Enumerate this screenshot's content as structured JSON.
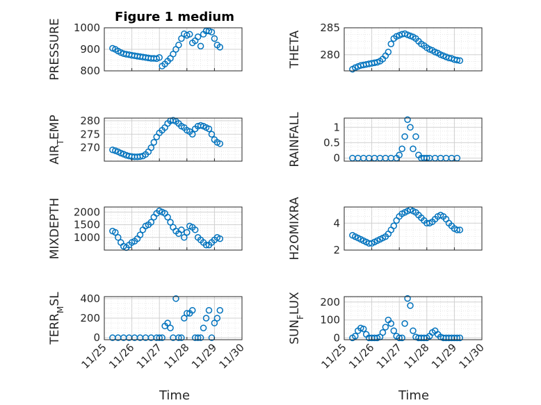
{
  "figure_title": "Figure 1 medium",
  "marker_color": "#0072BD",
  "x_tick_labels": [
    "11/25",
    "11/26",
    "11/27",
    "11/28",
    "11/29",
    "11/30"
  ],
  "x_axis_label": "Time",
  "chart_data": [
    {
      "type": "scatter",
      "title": "Figure 1 medium",
      "ylabel": "PRESSURE",
      "ylim": [
        800,
        1000
      ],
      "yticks": [
        "1000",
        "900",
        "800"
      ],
      "xlim": [
        0,
        5
      ],
      "x": [
        0.3,
        0.4,
        0.5,
        0.6,
        0.7,
        0.8,
        0.9,
        1.0,
        1.1,
        1.2,
        1.3,
        1.4,
        1.5,
        1.6,
        1.7,
        1.8,
        1.9,
        2.0,
        2.1,
        2.2,
        2.3,
        2.4,
        2.5,
        2.6,
        2.7,
        2.8,
        2.9,
        3.0,
        3.1,
        3.2,
        3.3,
        3.4,
        3.5,
        3.6,
        3.7,
        3.8,
        3.9,
        4.0,
        4.1,
        4.2
      ],
      "y": [
        905,
        900,
        892,
        885,
        880,
        877,
        875,
        872,
        870,
        868,
        866,
        864,
        862,
        860,
        858,
        858,
        857,
        862,
        822,
        832,
        845,
        858,
        878,
        900,
        920,
        950,
        972,
        965,
        970,
        930,
        940,
        958,
        915,
        970,
        985,
        985,
        980,
        950,
        920,
        910
      ]
    },
    {
      "type": "scatter",
      "ylabel": "THETA",
      "ylim": [
        277,
        285
      ],
      "yticks": [
        "285",
        "280"
      ],
      "xlim": [
        0,
        5
      ],
      "x": [
        0.3,
        0.4,
        0.5,
        0.6,
        0.7,
        0.8,
        0.9,
        1.0,
        1.1,
        1.2,
        1.3,
        1.4,
        1.5,
        1.6,
        1.7,
        1.8,
        1.9,
        2.0,
        2.1,
        2.2,
        2.3,
        2.4,
        2.5,
        2.6,
        2.7,
        2.8,
        2.9,
        3.0,
        3.1,
        3.2,
        3.3,
        3.4,
        3.5,
        3.6,
        3.7,
        3.8,
        3.9,
        4.0,
        4.1,
        4.2
      ],
      "y": [
        277.3,
        277.6,
        277.8,
        278.0,
        278.1,
        278.2,
        278.3,
        278.4,
        278.5,
        278.6,
        278.8,
        279.2,
        279.8,
        280.5,
        282.0,
        283.0,
        283.4,
        283.6,
        283.8,
        283.9,
        283.7,
        283.5,
        283.3,
        283.0,
        282.5,
        282.0,
        281.7,
        281.3,
        281.0,
        280.8,
        280.5,
        280.3,
        280.0,
        279.8,
        279.6,
        279.4,
        279.3,
        279.1,
        279.0,
        278.9
      ]
    },
    {
      "type": "scatter",
      "ylabel": "AIR_TEMP",
      "ylim": [
        265,
        281
      ],
      "yticks": [
        "280",
        "275",
        "270"
      ],
      "xlim": [
        0,
        5
      ],
      "x": [
        0.3,
        0.4,
        0.5,
        0.6,
        0.7,
        0.8,
        0.9,
        1.0,
        1.1,
        1.2,
        1.3,
        1.4,
        1.5,
        1.6,
        1.7,
        1.8,
        1.9,
        2.0,
        2.1,
        2.2,
        2.3,
        2.4,
        2.5,
        2.6,
        2.7,
        2.8,
        2.9,
        3.0,
        3.1,
        3.2,
        3.3,
        3.4,
        3.5,
        3.6,
        3.7,
        3.8,
        3.9,
        4.0,
        4.1,
        4.2
      ],
      "y": [
        269.2,
        268.9,
        268.5,
        268.0,
        267.6,
        267.2,
        266.9,
        266.7,
        266.6,
        266.6,
        266.7,
        266.9,
        267.5,
        268.5,
        270.0,
        272.0,
        274.0,
        275.5,
        276.5,
        277.5,
        279.0,
        280.0,
        280.2,
        279.8,
        279.0,
        278.0,
        277.5,
        276.5,
        276.0,
        275.0,
        277.0,
        278.0,
        278.3,
        278.0,
        277.5,
        277.0,
        275.0,
        273.0,
        272.0,
        271.5
      ]
    },
    {
      "type": "scatter",
      "ylabel": "RAINFALL",
      "ylim": [
        -0.1,
        1.3
      ],
      "yticks": [
        "1",
        "0.5",
        "0"
      ],
      "xlim": [
        0,
        5
      ],
      "x": [
        0.3,
        0.5,
        0.7,
        0.9,
        1.1,
        1.3,
        1.5,
        1.7,
        1.9,
        2.0,
        2.1,
        2.2,
        2.3,
        2.4,
        2.5,
        2.6,
        2.7,
        2.8,
        2.9,
        3.0,
        3.1,
        3.3,
        3.5,
        3.7,
        3.9,
        4.1
      ],
      "y": [
        0,
        0,
        0,
        0,
        0,
        0,
        0,
        0,
        0,
        0.1,
        0.3,
        0.7,
        1.25,
        1.0,
        0.3,
        0.7,
        0.1,
        0,
        0,
        0,
        0,
        0,
        0,
        0,
        0,
        0
      ]
    },
    {
      "type": "scatter",
      "ylabel": "MIXDEPTH",
      "ylim": [
        500,
        2200
      ],
      "yticks": [
        "2000",
        "1500",
        "1000"
      ],
      "xlim": [
        0,
        5
      ],
      "x": [
        0.3,
        0.4,
        0.5,
        0.6,
        0.7,
        0.8,
        0.9,
        1.0,
        1.1,
        1.2,
        1.3,
        1.4,
        1.5,
        1.6,
        1.7,
        1.8,
        1.9,
        2.0,
        2.1,
        2.2,
        2.3,
        2.4,
        2.5,
        2.6,
        2.7,
        2.8,
        2.9,
        3.0,
        3.1,
        3.2,
        3.3,
        3.4,
        3.5,
        3.6,
        3.7,
        3.8,
        3.9,
        4.0,
        4.1,
        4.2
      ],
      "y": [
        1250,
        1200,
        1000,
        800,
        650,
        600,
        700,
        800,
        850,
        950,
        1100,
        1300,
        1450,
        1500,
        1600,
        1800,
        1950,
        2050,
        2000,
        1950,
        1800,
        1600,
        1400,
        1250,
        1150,
        1300,
        1000,
        1200,
        1450,
        1400,
        1300,
        1000,
        900,
        800,
        700,
        700,
        800,
        900,
        1000,
        950
      ]
    },
    {
      "type": "scatter",
      "ylabel": "H2OMIXRA",
      "ylim": [
        2,
        5.2
      ],
      "yticks": [
        "4",
        "2"
      ],
      "xlim": [
        0,
        5
      ],
      "x": [
        0.3,
        0.4,
        0.5,
        0.6,
        0.7,
        0.8,
        0.9,
        1.0,
        1.1,
        1.2,
        1.3,
        1.4,
        1.5,
        1.6,
        1.7,
        1.8,
        1.9,
        2.0,
        2.1,
        2.2,
        2.3,
        2.4,
        2.5,
        2.6,
        2.7,
        2.8,
        2.9,
        3.0,
        3.1,
        3.2,
        3.3,
        3.4,
        3.5,
        3.6,
        3.7,
        3.8,
        3.9,
        4.0,
        4.1,
        4.2
      ],
      "y": [
        3.1,
        3.0,
        2.9,
        2.8,
        2.7,
        2.6,
        2.5,
        2.5,
        2.6,
        2.7,
        2.8,
        2.9,
        3.0,
        3.2,
        3.5,
        3.8,
        4.2,
        4.5,
        4.7,
        4.8,
        4.9,
        5.0,
        4.9,
        4.8,
        4.6,
        4.4,
        4.2,
        4.0,
        4.0,
        4.1,
        4.3,
        4.5,
        4.6,
        4.5,
        4.3,
        4.0,
        3.8,
        3.6,
        3.5,
        3.5
      ]
    },
    {
      "type": "scatter",
      "ylabel": "TERR_MSL",
      "ylim": [
        -20,
        420
      ],
      "yticks": [
        "400",
        "200",
        "0"
      ],
      "xlim": [
        0,
        5
      ],
      "x": [
        0.3,
        0.5,
        0.7,
        0.9,
        1.1,
        1.3,
        1.5,
        1.7,
        1.9,
        2.0,
        2.1,
        2.2,
        2.3,
        2.4,
        2.5,
        2.6,
        2.7,
        2.8,
        2.9,
        3.0,
        3.1,
        3.2,
        3.3,
        3.4,
        3.5,
        3.6,
        3.7,
        3.8,
        3.9,
        4.0,
        4.1,
        4.2
      ],
      "y": [
        0,
        0,
        0,
        0,
        0,
        0,
        0,
        0,
        0,
        0,
        0,
        120,
        150,
        100,
        0,
        400,
        0,
        0,
        200,
        250,
        250,
        280,
        0,
        0,
        0,
        100,
        200,
        280,
        0,
        150,
        200,
        280
      ]
    },
    {
      "type": "scatter",
      "ylabel": "SUN_FLUX",
      "ylim": [
        -10,
        230
      ],
      "yticks": [
        "200",
        "100",
        "0"
      ],
      "xlim": [
        0,
        5
      ],
      "x": [
        0.3,
        0.4,
        0.5,
        0.6,
        0.7,
        0.8,
        0.9,
        1.0,
        1.1,
        1.2,
        1.3,
        1.4,
        1.5,
        1.6,
        1.7,
        1.8,
        1.9,
        2.0,
        2.1,
        2.2,
        2.3,
        2.4,
        2.5,
        2.6,
        2.7,
        2.8,
        2.9,
        3.0,
        3.1,
        3.2,
        3.3,
        3.4,
        3.5,
        3.6,
        3.7,
        3.8,
        3.9,
        4.0,
        4.1,
        4.2
      ],
      "y": [
        0,
        10,
        40,
        55,
        50,
        20,
        0,
        0,
        0,
        0,
        5,
        30,
        60,
        100,
        80,
        40,
        10,
        0,
        0,
        80,
        220,
        180,
        40,
        5,
        0,
        0,
        0,
        0,
        10,
        30,
        40,
        20,
        5,
        0,
        0,
        0,
        0,
        0,
        0,
        0
      ]
    }
  ]
}
